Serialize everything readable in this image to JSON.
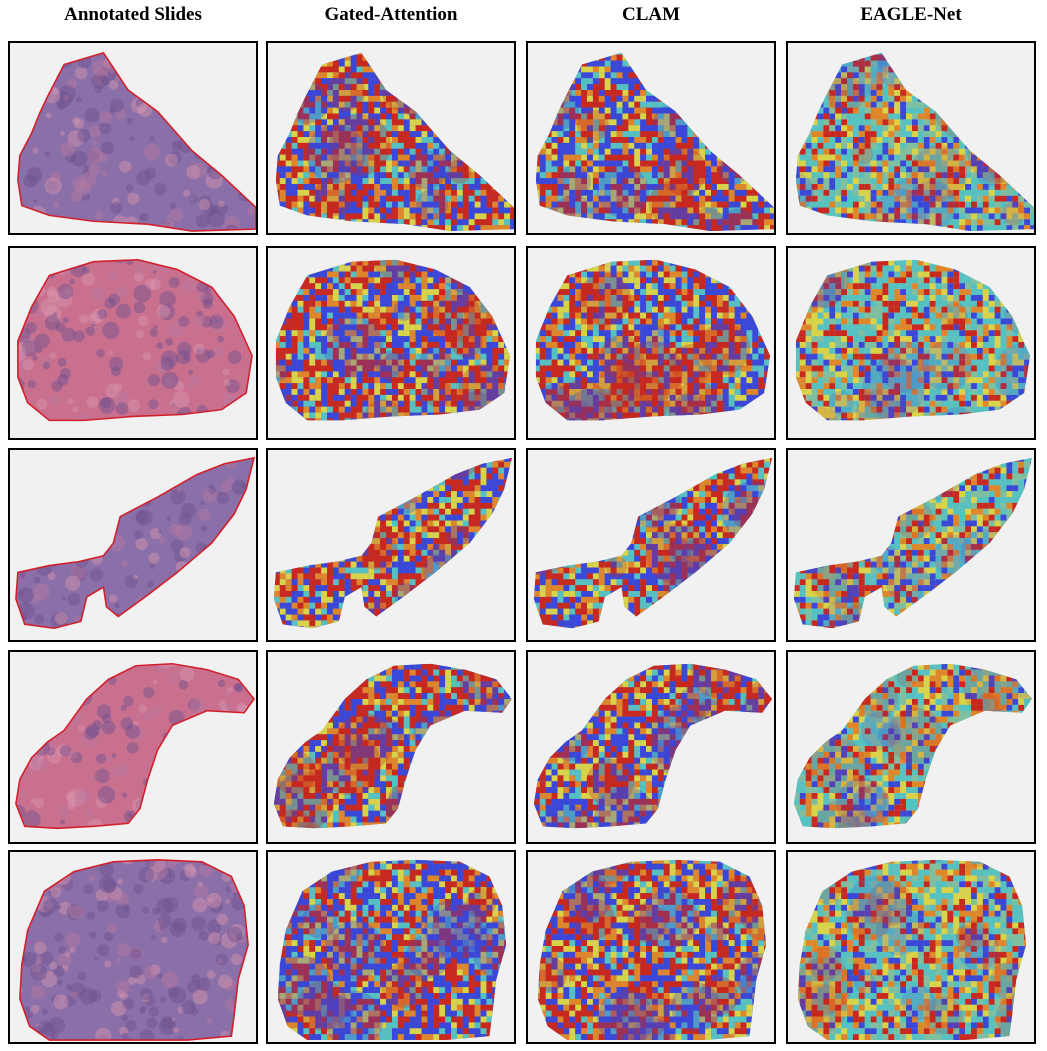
{
  "columns": [
    {
      "title": "Annotated Slides",
      "kind": "he"
    },
    {
      "title": "Gated-Attention",
      "kind": "ga"
    },
    {
      "title": "CLAM",
      "kind": "clam"
    },
    {
      "title": "EAGLE-Net",
      "kind": "eagle"
    }
  ],
  "rows": 5,
  "colors": {
    "tissue_purple": "#8a6fa8",
    "tissue_pink": "#c9708f",
    "annotation_red": "#d21f2a",
    "heat_red": "#c8281e",
    "heat_orange": "#e0862a",
    "heat_yellow": "#d9d34a",
    "heat_cyan": "#56c1c0",
    "heat_blue": "#3b47d6",
    "panel_background": "#f1f1f1"
  }
}
